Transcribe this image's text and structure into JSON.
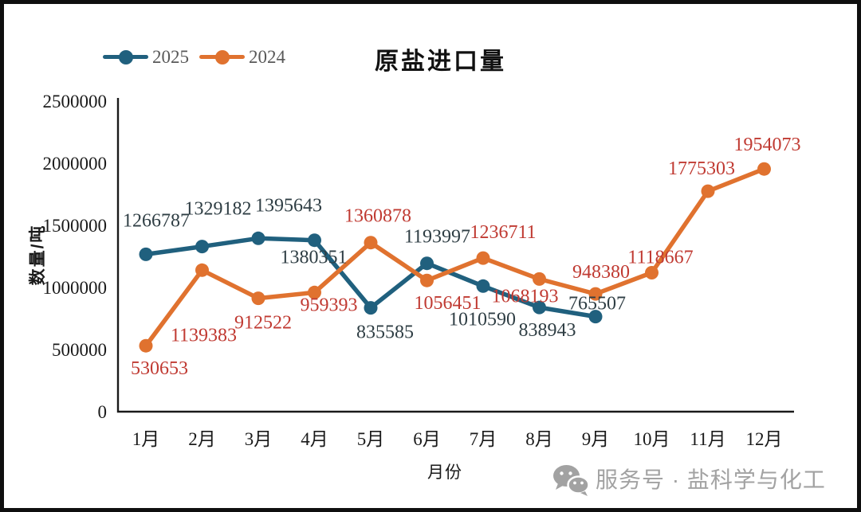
{
  "chart_data": {
    "type": "line",
    "title": "原盐进口量",
    "xlabel": "月份",
    "ylabel": "数量/吨",
    "categories": [
      "1月",
      "2月",
      "3月",
      "4月",
      "5月",
      "6月",
      "7月",
      "8月",
      "9月",
      "10月",
      "11月",
      "12月"
    ],
    "series": [
      {
        "name": "2025",
        "color": "#20607e",
        "label_color": "#2f3e44",
        "values": [
          1266787,
          1329182,
          1395643,
          1380351,
          835585,
          1193997,
          1010590,
          838943,
          765507
        ]
      },
      {
        "name": "2024",
        "color": "#e0722f",
        "label_color": "#c03a32",
        "values": [
          530653,
          1139383,
          912522,
          959393,
          1360878,
          1056451,
          1236711,
          1068193,
          948380,
          1118667,
          1775303,
          1954073
        ]
      }
    ],
    "y_ticks": [
      0,
      500000,
      1000000,
      1500000,
      2000000,
      2500000
    ],
    "ylim": [
      0,
      2500000
    ],
    "grid": false,
    "legend_position": "top-left",
    "data_labels_shown": true
  },
  "colors": {
    "axis": "#1a1a1a",
    "legend_text": "#595959",
    "watermark": "#a2a2a2"
  },
  "watermark": {
    "icon": "wechat-icon",
    "text": "服务号 · 盐科学与化工"
  }
}
